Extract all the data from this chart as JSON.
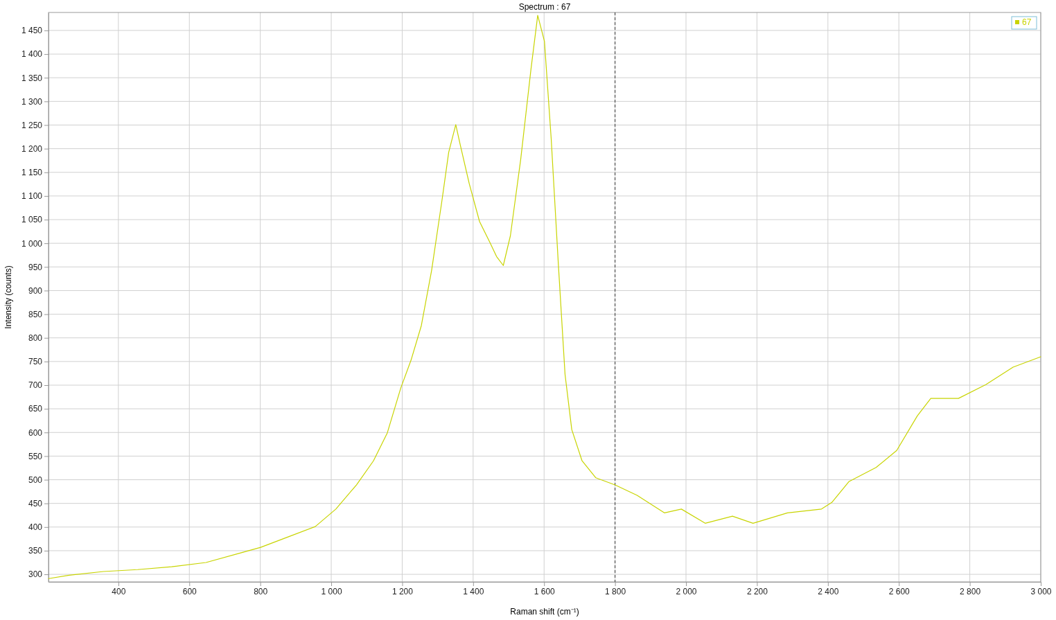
{
  "chart_data": {
    "type": "line",
    "title": "Spectrum : 67",
    "xlabel": "Raman shift (cm⁻¹)",
    "ylabel": "Intensity (counts)",
    "xlim": [
      203,
      3000
    ],
    "ylim": [
      284,
      1488
    ],
    "xticks": [
      {
        "value": 400,
        "label": "400"
      },
      {
        "value": 600,
        "label": "600"
      },
      {
        "value": 800,
        "label": "800"
      },
      {
        "value": 1000,
        "label": "1 000"
      },
      {
        "value": 1200,
        "label": "1 200"
      },
      {
        "value": 1400,
        "label": "1 400"
      },
      {
        "value": 1600,
        "label": "1 600"
      },
      {
        "value": 1800,
        "label": "1 800"
      },
      {
        "value": 2000,
        "label": "2 000"
      },
      {
        "value": 2200,
        "label": "2 200"
      },
      {
        "value": 2400,
        "label": "2 400"
      },
      {
        "value": 2600,
        "label": "2 600"
      },
      {
        "value": 2800,
        "label": "2 800"
      },
      {
        "value": 3000,
        "label": "3 000"
      }
    ],
    "yticks": [
      300,
      350,
      400,
      450,
      500,
      550,
      600,
      650,
      700,
      750,
      800,
      850,
      900,
      950,
      {
        "value": 1000,
        "label": "1 000"
      },
      {
        "value": 1050,
        "label": "1 050"
      },
      {
        "value": 1100,
        "label": "1 100"
      },
      {
        "value": 1150,
        "label": "1 150"
      },
      {
        "value": 1200,
        "label": "1 200"
      },
      {
        "value": 1250,
        "label": "1 250"
      },
      {
        "value": 1300,
        "label": "1 300"
      },
      {
        "value": 1350,
        "label": "1 350"
      },
      {
        "value": 1400,
        "label": "1 400"
      },
      {
        "value": 1450,
        "label": "1 450"
      }
    ],
    "grid": true,
    "legend": "top right",
    "marker": "none",
    "line_style": "solid",
    "ref_lines": [
      {
        "axis": "x",
        "value": 1800,
        "label": null,
        "color": "#333333",
        "line_style": "dashed"
      }
    ],
    "x": [
      203,
      261,
      358,
      454,
      550,
      647,
      743,
      801,
      878,
      955,
      1013,
      1071,
      1119,
      1158,
      1196,
      1225,
      1254,
      1283,
      1312,
      1331,
      1351,
      1364,
      1389,
      1418,
      1447,
      1466,
      1485,
      1505,
      1534,
      1563,
      1582,
      1601,
      1620,
      1640,
      1659,
      1678,
      1707,
      1746,
      1800,
      1862,
      1939,
      1987,
      2054,
      2131,
      2189,
      2286,
      2382,
      2411,
      2459,
      2536,
      2594,
      2652,
      2690,
      2768,
      2845,
      2922,
      3000
    ],
    "series": [
      {
        "name": "67",
        "color": "#c8d400",
        "values": [
          291,
          298,
          306,
          310,
          316,
          325,
          345,
          357,
          379,
          401,
          438,
          489,
          540,
          599,
          694,
          753,
          826,
          943,
          1090,
          1192,
          1251,
          1207,
          1126,
          1046,
          1002,
          972,
          953,
          1016,
          1177,
          1368,
          1482,
          1427,
          1221,
          958,
          723,
          606,
          540,
          504,
          489,
          467,
          430,
          438,
          408,
          423,
          408,
          430,
          438,
          452,
          496,
          526,
          562,
          635,
          672,
          672,
          701,
          738,
          760
        ]
      }
    ]
  }
}
